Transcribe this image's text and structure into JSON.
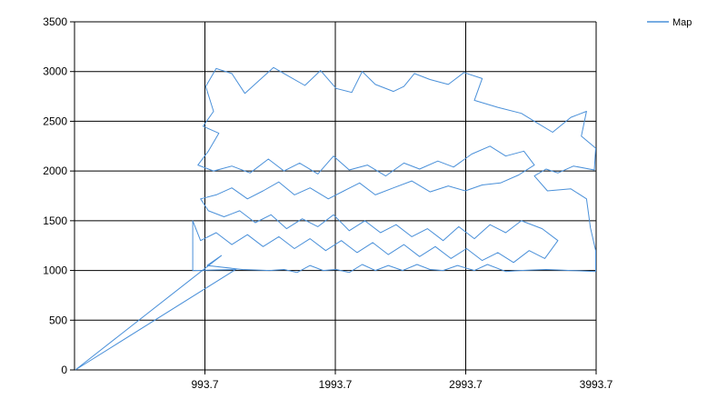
{
  "chart_data": {
    "type": "line",
    "title": "",
    "xlabel": "",
    "ylabel": "",
    "xlim": [
      -6.3,
      3993.7
    ],
    "ylim": [
      0,
      3500
    ],
    "x_ticks": [
      "993.7",
      "1993.7",
      "2993.7",
      "3993.7"
    ],
    "x_tick_values": [
      993.7,
      1993.7,
      2993.7,
      3993.7
    ],
    "y_ticks": [
      "0",
      "500",
      "1000",
      "1500",
      "2000",
      "2500",
      "3000",
      "3500"
    ],
    "y_tick_values": [
      0,
      500,
      1000,
      1500,
      2000,
      2500,
      3000,
      3500
    ],
    "grid": true,
    "legend_position": "top-right",
    "series": [
      {
        "name": "Map",
        "color": "#4a90d9",
        "points": [
          [
            0,
            0
          ],
          [
            1120,
            1150
          ],
          [
            1010,
            1050
          ],
          [
            1280,
            1010
          ],
          [
            1490,
            1000
          ],
          [
            1600,
            1010
          ],
          [
            1700,
            980
          ],
          [
            1800,
            1050
          ],
          [
            1900,
            1000
          ],
          [
            2000,
            1010
          ],
          [
            2100,
            980
          ],
          [
            2200,
            1060
          ],
          [
            2300,
            1000
          ],
          [
            2400,
            1050
          ],
          [
            2510,
            1000
          ],
          [
            2620,
            1060
          ],
          [
            2720,
            1010
          ],
          [
            2820,
            1000
          ],
          [
            2930,
            1050
          ],
          [
            3060,
            1000
          ],
          [
            3160,
            1060
          ],
          [
            3300,
            990
          ],
          [
            3410,
            1000
          ],
          [
            3610,
            1010
          ],
          [
            3800,
            1000
          ],
          [
            3990,
            990
          ],
          [
            3990,
            1200
          ],
          [
            3950,
            1430
          ],
          [
            3920,
            1720
          ],
          [
            3800,
            1820
          ],
          [
            3620,
            1800
          ],
          [
            3520,
            1950
          ],
          [
            3610,
            2020
          ],
          [
            3700,
            1980
          ],
          [
            3820,
            2050
          ],
          [
            3980,
            2010
          ],
          [
            3990,
            2230
          ],
          [
            3880,
            2350
          ],
          [
            3920,
            2600
          ],
          [
            3800,
            2540
          ],
          [
            3660,
            2390
          ],
          [
            3520,
            2500
          ],
          [
            3420,
            2580
          ],
          [
            3240,
            2640
          ],
          [
            3060,
            2710
          ],
          [
            3120,
            2930
          ],
          [
            2980,
            2990
          ],
          [
            2860,
            2870
          ],
          [
            2720,
            2920
          ],
          [
            2600,
            2980
          ],
          [
            2520,
            2850
          ],
          [
            2440,
            2800
          ],
          [
            2300,
            2870
          ],
          [
            2200,
            3000
          ],
          [
            2120,
            2790
          ],
          [
            2000,
            2830
          ],
          [
            1880,
            3010
          ],
          [
            1760,
            2860
          ],
          [
            1640,
            2950
          ],
          [
            1520,
            3040
          ],
          [
            1400,
            2900
          ],
          [
            1300,
            2780
          ],
          [
            1200,
            2980
          ],
          [
            1080,
            3030
          ],
          [
            1000,
            2850
          ],
          [
            1060,
            2600
          ],
          [
            980,
            2450
          ],
          [
            1100,
            2380
          ],
          [
            1020,
            2200
          ],
          [
            940,
            2060
          ],
          [
            1060,
            2000
          ],
          [
            1200,
            2050
          ],
          [
            1340,
            1980
          ],
          [
            1480,
            2120
          ],
          [
            1600,
            2000
          ],
          [
            1720,
            2080
          ],
          [
            1860,
            1970
          ],
          [
            1980,
            2150
          ],
          [
            2100,
            2010
          ],
          [
            2240,
            2060
          ],
          [
            2380,
            1950
          ],
          [
            2520,
            2080
          ],
          [
            2640,
            2020
          ],
          [
            2780,
            2100
          ],
          [
            2900,
            2040
          ],
          [
            3040,
            2170
          ],
          [
            3180,
            2250
          ],
          [
            3300,
            2150
          ],
          [
            3440,
            2200
          ],
          [
            3520,
            2060
          ],
          [
            3400,
            1960
          ],
          [
            3260,
            1880
          ],
          [
            3120,
            1860
          ],
          [
            2990,
            1800
          ],
          [
            2860,
            1850
          ],
          [
            2720,
            1790
          ],
          [
            2580,
            1900
          ],
          [
            2440,
            1830
          ],
          [
            2300,
            1760
          ],
          [
            2180,
            1880
          ],
          [
            2060,
            1800
          ],
          [
            1940,
            1720
          ],
          [
            1800,
            1830
          ],
          [
            1680,
            1760
          ],
          [
            1560,
            1890
          ],
          [
            1440,
            1800
          ],
          [
            1320,
            1720
          ],
          [
            1200,
            1830
          ],
          [
            1080,
            1760
          ],
          [
            960,
            1720
          ],
          [
            1020,
            1600
          ],
          [
            1140,
            1540
          ],
          [
            1260,
            1600
          ],
          [
            1380,
            1480
          ],
          [
            1500,
            1560
          ],
          [
            1620,
            1420
          ],
          [
            1740,
            1520
          ],
          [
            1860,
            1440
          ],
          [
            1980,
            1560
          ],
          [
            2100,
            1400
          ],
          [
            2220,
            1500
          ],
          [
            2340,
            1380
          ],
          [
            2460,
            1460
          ],
          [
            2580,
            1340
          ],
          [
            2700,
            1420
          ],
          [
            2820,
            1300
          ],
          [
            2940,
            1440
          ],
          [
            3060,
            1320
          ],
          [
            3180,
            1460
          ],
          [
            3300,
            1380
          ],
          [
            3420,
            1500
          ],
          [
            3580,
            1420
          ],
          [
            3700,
            1300
          ],
          [
            3600,
            1120
          ],
          [
            3480,
            1200
          ],
          [
            3360,
            1080
          ],
          [
            3240,
            1180
          ],
          [
            3120,
            1100
          ],
          [
            3000,
            1220
          ],
          [
            2880,
            1120
          ],
          [
            2760,
            1240
          ],
          [
            2640,
            1140
          ],
          [
            2520,
            1260
          ],
          [
            2400,
            1160
          ],
          [
            2280,
            1280
          ],
          [
            2160,
            1180
          ],
          [
            2040,
            1300
          ],
          [
            1920,
            1200
          ],
          [
            1800,
            1320
          ],
          [
            1680,
            1220
          ],
          [
            1560,
            1340
          ],
          [
            1440,
            1240
          ],
          [
            1320,
            1360
          ],
          [
            1200,
            1260
          ],
          [
            1080,
            1380
          ],
          [
            960,
            1300
          ],
          [
            900,
            1500
          ],
          [
            900,
            1000
          ],
          [
            1230,
            1010
          ],
          [
            0,
            0
          ]
        ]
      }
    ]
  }
}
